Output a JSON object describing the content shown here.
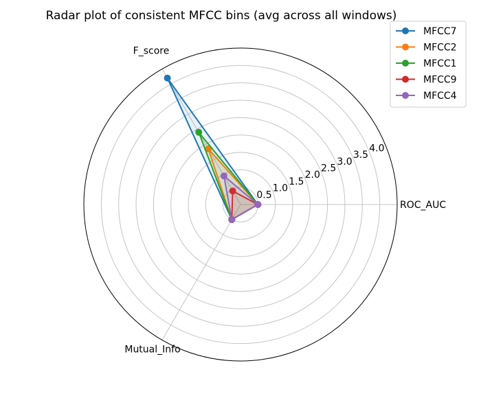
{
  "chart_data": {
    "type": "radar",
    "title": "Radar plot of consistent MFCC bins (avg across all windows)",
    "axes": [
      "ROC_AUC",
      "F_score",
      "Mutual_Info"
    ],
    "rlim": [
      0,
      4.5
    ],
    "r_ticks": [
      0.5,
      1.0,
      1.5,
      2.0,
      2.5,
      3.0,
      3.5,
      4.0
    ],
    "r_tick_labels": [
      "0.5",
      "1.0",
      "1.5",
      "2.0",
      "2.5",
      "3.0",
      "3.5",
      "4.0"
    ],
    "grid": true,
    "legend_position": "top-right",
    "series": [
      {
        "name": "MFCC7",
        "color": "#1f77b4",
        "values": [
          0.5,
          4.2,
          0.5
        ]
      },
      {
        "name": "MFCC2",
        "color": "#ff7f0e",
        "values": [
          0.5,
          1.85,
          0.5
        ]
      },
      {
        "name": "MFCC1",
        "color": "#2ca02c",
        "values": [
          0.5,
          2.4,
          0.5
        ]
      },
      {
        "name": "MFCC9",
        "color": "#d62728",
        "values": [
          0.5,
          0.45,
          0.5
        ]
      },
      {
        "name": "MFCC4",
        "color": "#9467bd",
        "values": [
          0.5,
          0.95,
          0.5
        ]
      }
    ]
  }
}
